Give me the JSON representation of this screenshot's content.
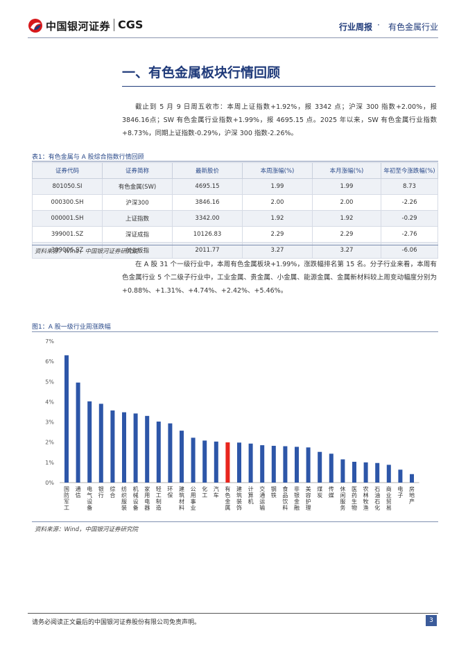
{
  "header": {
    "logo_cn": "中国银河证券",
    "logo_en": "CGS",
    "report_type": "行业周报",
    "dot": "·",
    "industry": "有色金属行业"
  },
  "section": {
    "title": "一、有色金属板块行情回顾",
    "para1": "截止到 5 月 9 日周五收市：本周上证指数+1.92%，报 3342 点；沪深 300 指数+2.00%，报 3846.16点；SW 有色金属行业指数+1.99%，报 4695.15 点。2025 年以来，SW 有色金属行业指数+8.73%，同期上证指数-0.29%，沪深 300 指数-2.26%。",
    "para2": "在 A 股 31 个一级行业中，本周有色金属板块+1.99%，涨跌幅排名第 15 名。分子行业来看，本周有色金属行业 5 个二级子行业中，工业金属、贵金属、小金属、能源金属、金属新材料较上周变动幅度分别为+0.88%、+1.31%、+4.74%、+2.42%、+5.46%。"
  },
  "table": {
    "caption": "表1：有色金属与 A 股综合指数行情回顾",
    "headers": [
      "证券代码",
      "证券简称",
      "最新股价",
      "本周涨幅(%)",
      "本月涨幅(%)",
      "年初至今涨跌幅(%)"
    ],
    "rows": [
      [
        "801050.SI",
        "有色金属(SW)",
        "4695.15",
        "1.99",
        "1.99",
        "8.73"
      ],
      [
        "000300.SH",
        "沪深300",
        "3846.16",
        "2.00",
        "2.00",
        "-2.26"
      ],
      [
        "000001.SH",
        "上证指数",
        "3342.00",
        "1.92",
        "1.92",
        "-0.29"
      ],
      [
        "399001.SZ",
        "深证成指",
        "10126.83",
        "2.29",
        "2.29",
        "-2.76"
      ],
      [
        "399006.SZ",
        "创业板指",
        "2011.77",
        "3.27",
        "3.27",
        "-6.06"
      ]
    ],
    "source": "资料来源：Wind，中国银河证券研究院"
  },
  "figure": {
    "caption": "图1：A 股一级行业周涨跌幅",
    "source": "资料来源：Wind，中国银河证券研究院"
  },
  "chart_data": {
    "type": "bar",
    "categories": [
      "国防军工",
      "通信",
      "电气设备",
      "银行",
      "综合",
      "纺织服装",
      "机械设备",
      "家用电器",
      "轻工制造",
      "环保",
      "建筑材料",
      "公用事业",
      "化工",
      "汽车",
      "有色金属",
      "建筑装饰",
      "计算机",
      "交通运输",
      "钢铁",
      "食品饮料",
      "非银金融",
      "美容护理",
      "煤炭",
      "传媒",
      "休闲服务",
      "医药生物",
      "农林牧渔",
      "石油石化",
      "商业贸易",
      "电子",
      "房地产"
    ],
    "values": [
      6.3,
      4.95,
      4.02,
      3.9,
      3.57,
      3.48,
      3.42,
      3.3,
      3.02,
      2.93,
      2.57,
      2.22,
      2.08,
      2.03,
      1.99,
      1.98,
      1.93,
      1.85,
      1.82,
      1.8,
      1.77,
      1.74,
      1.52,
      1.43,
      1.15,
      1.03,
      1.0,
      0.97,
      0.88,
      0.64,
      0.42
    ],
    "highlight_category": "有色金属",
    "bar_color": "#2d56a8",
    "highlight_color": "#e8261e",
    "y_tick_labels": [
      "0%",
      "1%",
      "2%",
      "3%",
      "4%",
      "5%",
      "6%",
      "7%"
    ],
    "ylim": [
      0,
      7
    ],
    "grid": false,
    "title": "",
    "xlabel": "",
    "ylabel": ""
  },
  "footer": {
    "disclaimer": "请务必阅读正文最后的中国银河证券股份有限公司免责声明。",
    "page": "3"
  },
  "colors": {
    "brand_blue": "#1f3a7a",
    "logo_red": "#d7191c"
  }
}
